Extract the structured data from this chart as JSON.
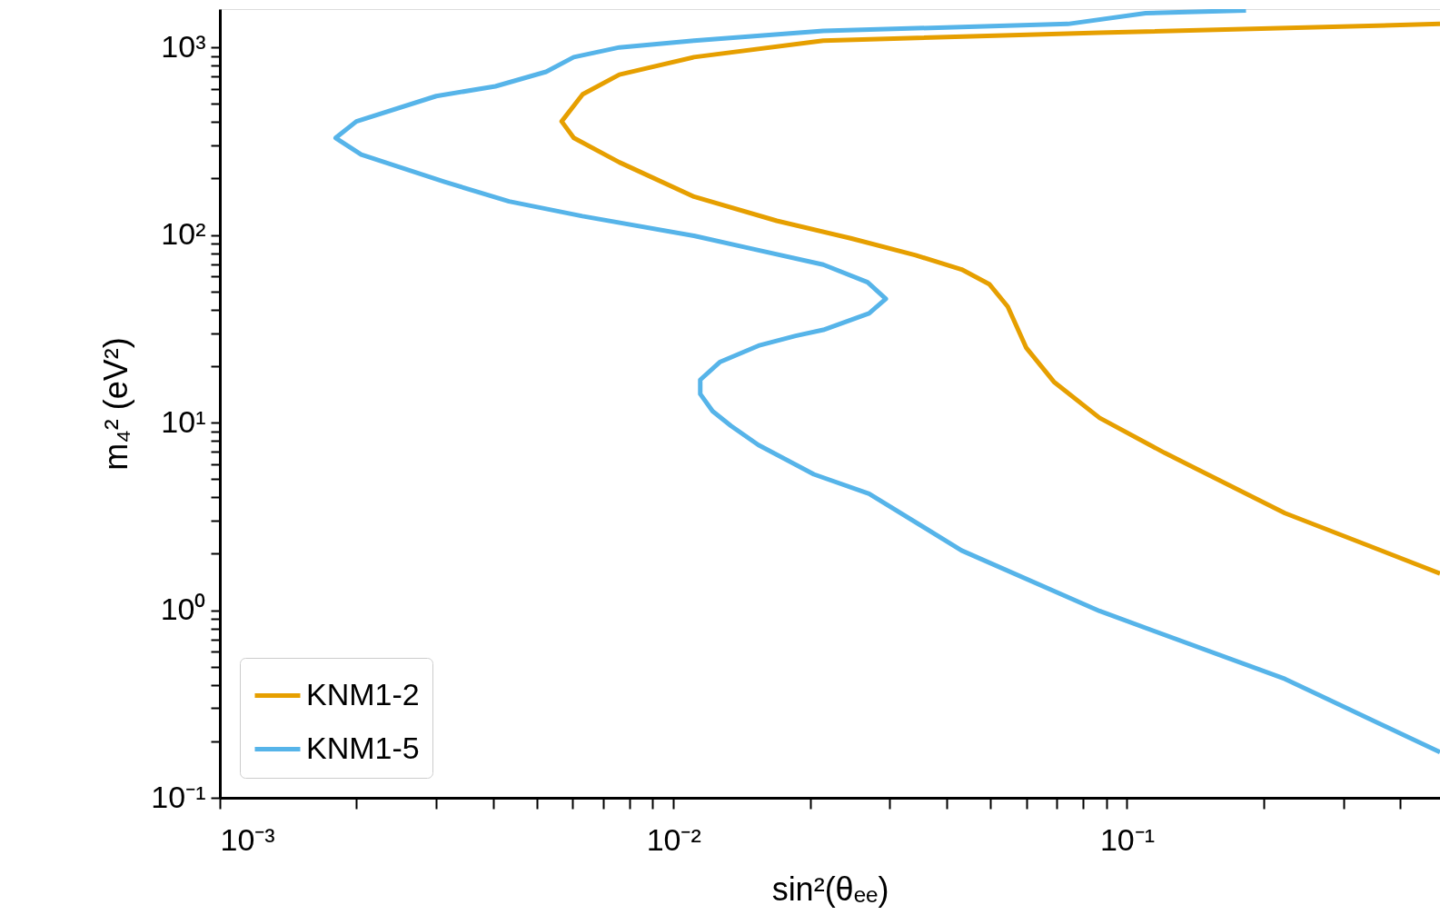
{
  "chart_data": {
    "type": "line",
    "xlabel": "sin²(θₑₑ)",
    "ylabel": "m₄² (eV²)",
    "log": "xy",
    "grid": false,
    "legend": "bottom left",
    "line_style": "solid",
    "marker": "none",
    "xlim": [
      0.001,
      0.49
    ],
    "ylim": [
      0.1,
      1600
    ],
    "xticks": [
      {
        "value": 0.001,
        "label": "10⁻³"
      },
      {
        "value": 0.002,
        "label": null
      },
      {
        "value": 0.003,
        "label": null
      },
      {
        "value": 0.004,
        "label": null
      },
      {
        "value": 0.005,
        "label": null
      },
      {
        "value": 0.006,
        "label": null
      },
      {
        "value": 0.007,
        "label": null
      },
      {
        "value": 0.008,
        "label": null
      },
      {
        "value": 0.009,
        "label": null
      },
      {
        "value": 0.01,
        "label": "10⁻²"
      },
      {
        "value": 0.02,
        "label": null
      },
      {
        "value": 0.03,
        "label": null
      },
      {
        "value": 0.04,
        "label": null
      },
      {
        "value": 0.05,
        "label": null
      },
      {
        "value": 0.06,
        "label": null
      },
      {
        "value": 0.07,
        "label": null
      },
      {
        "value": 0.08,
        "label": null
      },
      {
        "value": 0.09,
        "label": null
      },
      {
        "value": 0.1,
        "label": "10⁻¹"
      },
      {
        "value": 0.2,
        "label": null
      },
      {
        "value": 0.3,
        "label": null
      },
      {
        "value": 0.4,
        "label": null
      }
    ],
    "yticks": [
      {
        "value": 0.1,
        "label": "10⁻¹"
      },
      {
        "value": 0.2,
        "label": null
      },
      {
        "value": 0.3,
        "label": null
      },
      {
        "value": 0.4,
        "label": null
      },
      {
        "value": 0.5,
        "label": null
      },
      {
        "value": 0.6,
        "label": null
      },
      {
        "value": 0.7,
        "label": null
      },
      {
        "value": 0.8,
        "label": null
      },
      {
        "value": 0.9,
        "label": null
      },
      {
        "value": 1,
        "label": "10⁰"
      },
      {
        "value": 2,
        "label": null
      },
      {
        "value": 3,
        "label": null
      },
      {
        "value": 4,
        "label": null
      },
      {
        "value": 5,
        "label": null
      },
      {
        "value": 6,
        "label": null
      },
      {
        "value": 7,
        "label": null
      },
      {
        "value": 8,
        "label": null
      },
      {
        "value": 9,
        "label": null
      },
      {
        "value": 10,
        "label": "10¹"
      },
      {
        "value": 20,
        "label": null
      },
      {
        "value": 30,
        "label": null
      },
      {
        "value": 40,
        "label": null
      },
      {
        "value": 50,
        "label": null
      },
      {
        "value": 60,
        "label": null
      },
      {
        "value": 70,
        "label": null
      },
      {
        "value": 80,
        "label": null
      },
      {
        "value": 90,
        "label": null
      },
      {
        "value": 100,
        "label": "10²"
      },
      {
        "value": 200,
        "label": null
      },
      {
        "value": 300,
        "label": null
      },
      {
        "value": 400,
        "label": null
      },
      {
        "value": 500,
        "label": null
      },
      {
        "value": 600,
        "label": null
      },
      {
        "value": 700,
        "label": null
      },
      {
        "value": 800,
        "label": null
      },
      {
        "value": 900,
        "label": null
      },
      {
        "value": 1000,
        "label": "10³"
      }
    ],
    "series": [
      {
        "name": "KNM1-2",
        "color": "#e69f00",
        "x": [
          0.49,
          0.223,
          0.121,
          0.087,
          0.069,
          0.06,
          0.0546,
          0.0497,
          0.0432,
          0.0342,
          0.0246,
          0.0169,
          0.0111,
          0.0076,
          0.00603,
          0.00567,
          0.00631,
          0.0076,
          0.0111,
          0.0214,
          0.087,
          0.49
        ],
        "values": [
          1.57,
          3.29,
          6.9,
          10.6,
          16.5,
          25,
          41.5,
          54.7,
          65.5,
          78,
          96,
          119,
          160,
          244,
          329,
          403,
          562,
          716,
          887,
          1087,
          1197,
          1333
        ]
      },
      {
        "name": "KNM1-5",
        "color": "#56b4e9",
        "x": [
          0.49,
          0.223,
          0.087,
          0.0432,
          0.027,
          0.0204,
          0.0154,
          0.0134,
          0.0122,
          0.01146,
          0.01146,
          0.01265,
          0.0154,
          0.0186,
          0.0214,
          0.027,
          0.0294,
          0.0268,
          0.0214,
          0.0147,
          0.0111,
          0.0063,
          0.00434,
          0.00313,
          0.00205,
          0.0018,
          0.002,
          0.003,
          0.00405,
          0.00524,
          0.00603,
          0.0076,
          0.0111,
          0.0214,
          0.0741,
          0.11,
          0.183
        ],
        "values": [
          0.175,
          0.43,
          0.99,
          2.08,
          4.18,
          5.3,
          7.6,
          9.6,
          11.5,
          14.2,
          16.9,
          21,
          25.7,
          29,
          31.2,
          38.2,
          45.7,
          56,
          69.5,
          85,
          99,
          126,
          151,
          192,
          268,
          329,
          403,
          550,
          620,
          741,
          887,
          1000,
          1087,
          1224,
          1333,
          1520,
          1575
        ]
      }
    ]
  }
}
